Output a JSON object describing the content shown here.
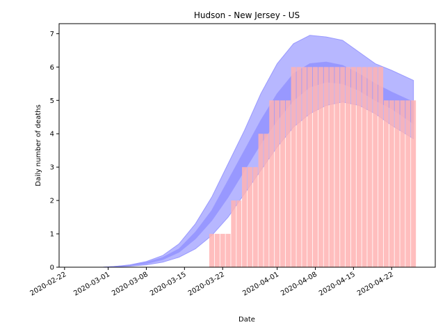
{
  "chart_data": {
    "type": "bar",
    "title": "Hudson - New Jersey - US",
    "xlabel": "Date",
    "ylabel": "Daily number of deaths",
    "ylim": [
      0,
      7.3
    ],
    "xlim": [
      "2020-02-21",
      "2020-04-30"
    ],
    "grid": false,
    "y_ticks": [
      0,
      1,
      2,
      3,
      4,
      5,
      6,
      7
    ],
    "x_ticks": [
      "2020-02-22",
      "2020-03-01",
      "2020-03-08",
      "2020-03-15",
      "2020-03-22",
      "2020-04-01",
      "2020-04-08",
      "2020-04-15",
      "2020-04-22"
    ],
    "colors": {
      "bars": "#ffb3b3",
      "outer_band": "#b3b3ff",
      "inner_band": "#8080ff",
      "band_edge": "#9999ff"
    },
    "series": [
      {
        "type": "bar",
        "x": [
          "2020-03-20",
          "2020-03-21",
          "2020-03-22",
          "2020-03-23",
          "2020-03-24",
          "2020-03-25",
          "2020-03-26",
          "2020-03-27",
          "2020-03-28",
          "2020-03-29",
          "2020-03-30",
          "2020-03-31",
          "2020-04-01",
          "2020-04-02",
          "2020-04-03",
          "2020-04-04",
          "2020-04-05",
          "2020-04-06",
          "2020-04-07",
          "2020-04-08",
          "2020-04-09",
          "2020-04-10",
          "2020-04-11",
          "2020-04-12",
          "2020-04-13",
          "2020-04-14",
          "2020-04-15",
          "2020-04-16",
          "2020-04-17",
          "2020-04-18",
          "2020-04-19",
          "2020-04-20",
          "2020-04-21",
          "2020-04-22",
          "2020-04-23",
          "2020-04-24",
          "2020-04-25",
          "2020-04-26"
        ],
        "values": [
          1,
          1,
          1,
          1,
          2,
          2,
          3,
          3,
          3,
          4,
          4,
          5,
          5,
          5,
          5,
          6,
          6,
          6,
          6,
          6,
          6,
          6,
          6,
          6,
          6,
          6,
          6,
          6,
          6,
          6,
          6,
          6,
          5,
          5,
          5,
          5,
          5,
          5
        ]
      },
      {
        "type": "band",
        "x": [
          "2020-02-29",
          "2020-03-02",
          "2020-03-05",
          "2020-03-08",
          "2020-03-11",
          "2020-03-14",
          "2020-03-17",
          "2020-03-20",
          "2020-03-23",
          "2020-03-26",
          "2020-03-29",
          "2020-04-01",
          "2020-04-04",
          "2020-04-07",
          "2020-04-10",
          "2020-04-13",
          "2020-04-16",
          "2020-04-19",
          "2020-04-22",
          "2020-04-26"
        ],
        "lower": [
          0,
          0.01,
          0.03,
          0.07,
          0.15,
          0.3,
          0.55,
          0.95,
          1.5,
          2.2,
          2.9,
          3.6,
          4.2,
          4.6,
          4.85,
          4.95,
          4.85,
          4.6,
          4.25,
          3.85
        ],
        "upper": [
          0,
          0.02,
          0.07,
          0.17,
          0.35,
          0.7,
          1.3,
          2.1,
          3.1,
          4.1,
          5.2,
          6.1,
          6.7,
          6.95,
          6.9,
          6.8,
          6.45,
          6.1,
          5.9,
          5.6
        ]
      },
      {
        "type": "band",
        "x": [
          "2020-02-29",
          "2020-03-02",
          "2020-03-05",
          "2020-03-08",
          "2020-03-11",
          "2020-03-14",
          "2020-03-17",
          "2020-03-20",
          "2020-03-23",
          "2020-03-26",
          "2020-03-29",
          "2020-04-01",
          "2020-04-04",
          "2020-04-07",
          "2020-04-10",
          "2020-04-13",
          "2020-04-16",
          "2020-04-19",
          "2020-04-22",
          "2020-04-26"
        ],
        "lower": [
          0,
          0.01,
          0.05,
          0.11,
          0.23,
          0.45,
          0.85,
          1.4,
          2.1,
          2.9,
          3.7,
          4.4,
          5.0,
          5.4,
          5.55,
          5.5,
          5.3,
          5.0,
          4.75,
          4.3
        ],
        "upper": [
          0,
          0.02,
          0.06,
          0.14,
          0.29,
          0.55,
          1.05,
          1.7,
          2.6,
          3.5,
          4.4,
          5.2,
          5.8,
          6.1,
          6.15,
          6.05,
          5.8,
          5.5,
          5.25,
          4.95
        ]
      }
    ]
  }
}
